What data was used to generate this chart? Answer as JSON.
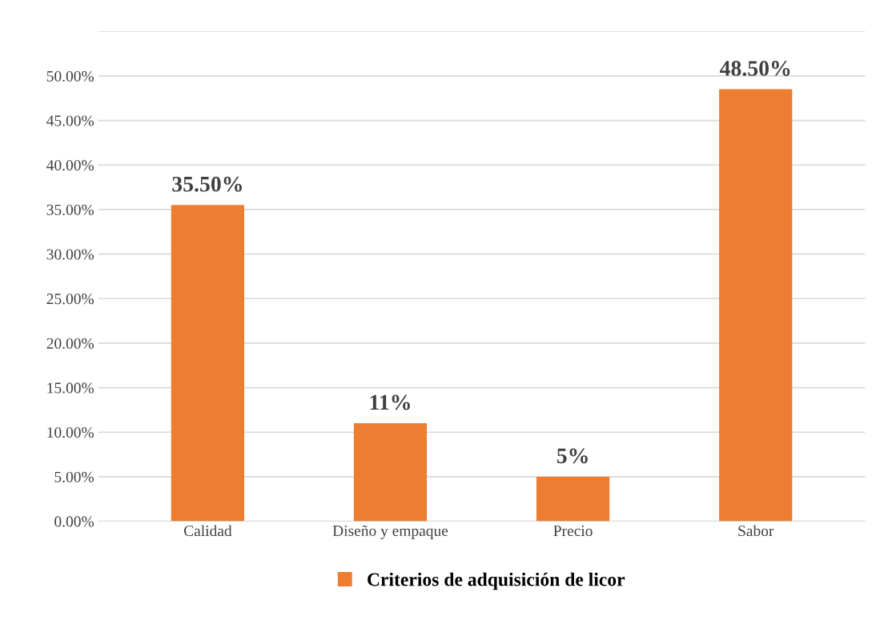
{
  "chart_data": {
    "type": "bar",
    "categories": [
      "Calidad",
      "Diseño y empaque",
      "Precio",
      "Sabor"
    ],
    "series": [
      {
        "name": "Criterios de adquisición de licor",
        "color": "#ed7d31",
        "values": [
          35.5,
          11,
          5,
          48.5
        ],
        "value_labels": [
          "35.50%",
          "11%",
          "5%",
          "48.50%"
        ]
      }
    ],
    "ylim": [
      0,
      55
    ],
    "yticks": [
      {
        "value": 0,
        "label": "0.00%"
      },
      {
        "value": 5,
        "label": "5.00%"
      },
      {
        "value": 10,
        "label": "10.00%"
      },
      {
        "value": 15,
        "label": "15.00%"
      },
      {
        "value": 20,
        "label": "20.00%"
      },
      {
        "value": 25,
        "label": "25.00%"
      },
      {
        "value": 30,
        "label": "30.00%"
      },
      {
        "value": 35,
        "label": "35.00%"
      },
      {
        "value": 40,
        "label": "40.00%"
      },
      {
        "value": 45,
        "label": "45.00%"
      },
      {
        "value": 50,
        "label": "50.00%"
      },
      {
        "value": 55,
        "label": null
      }
    ],
    "grid": "y",
    "legend": "bottom"
  }
}
